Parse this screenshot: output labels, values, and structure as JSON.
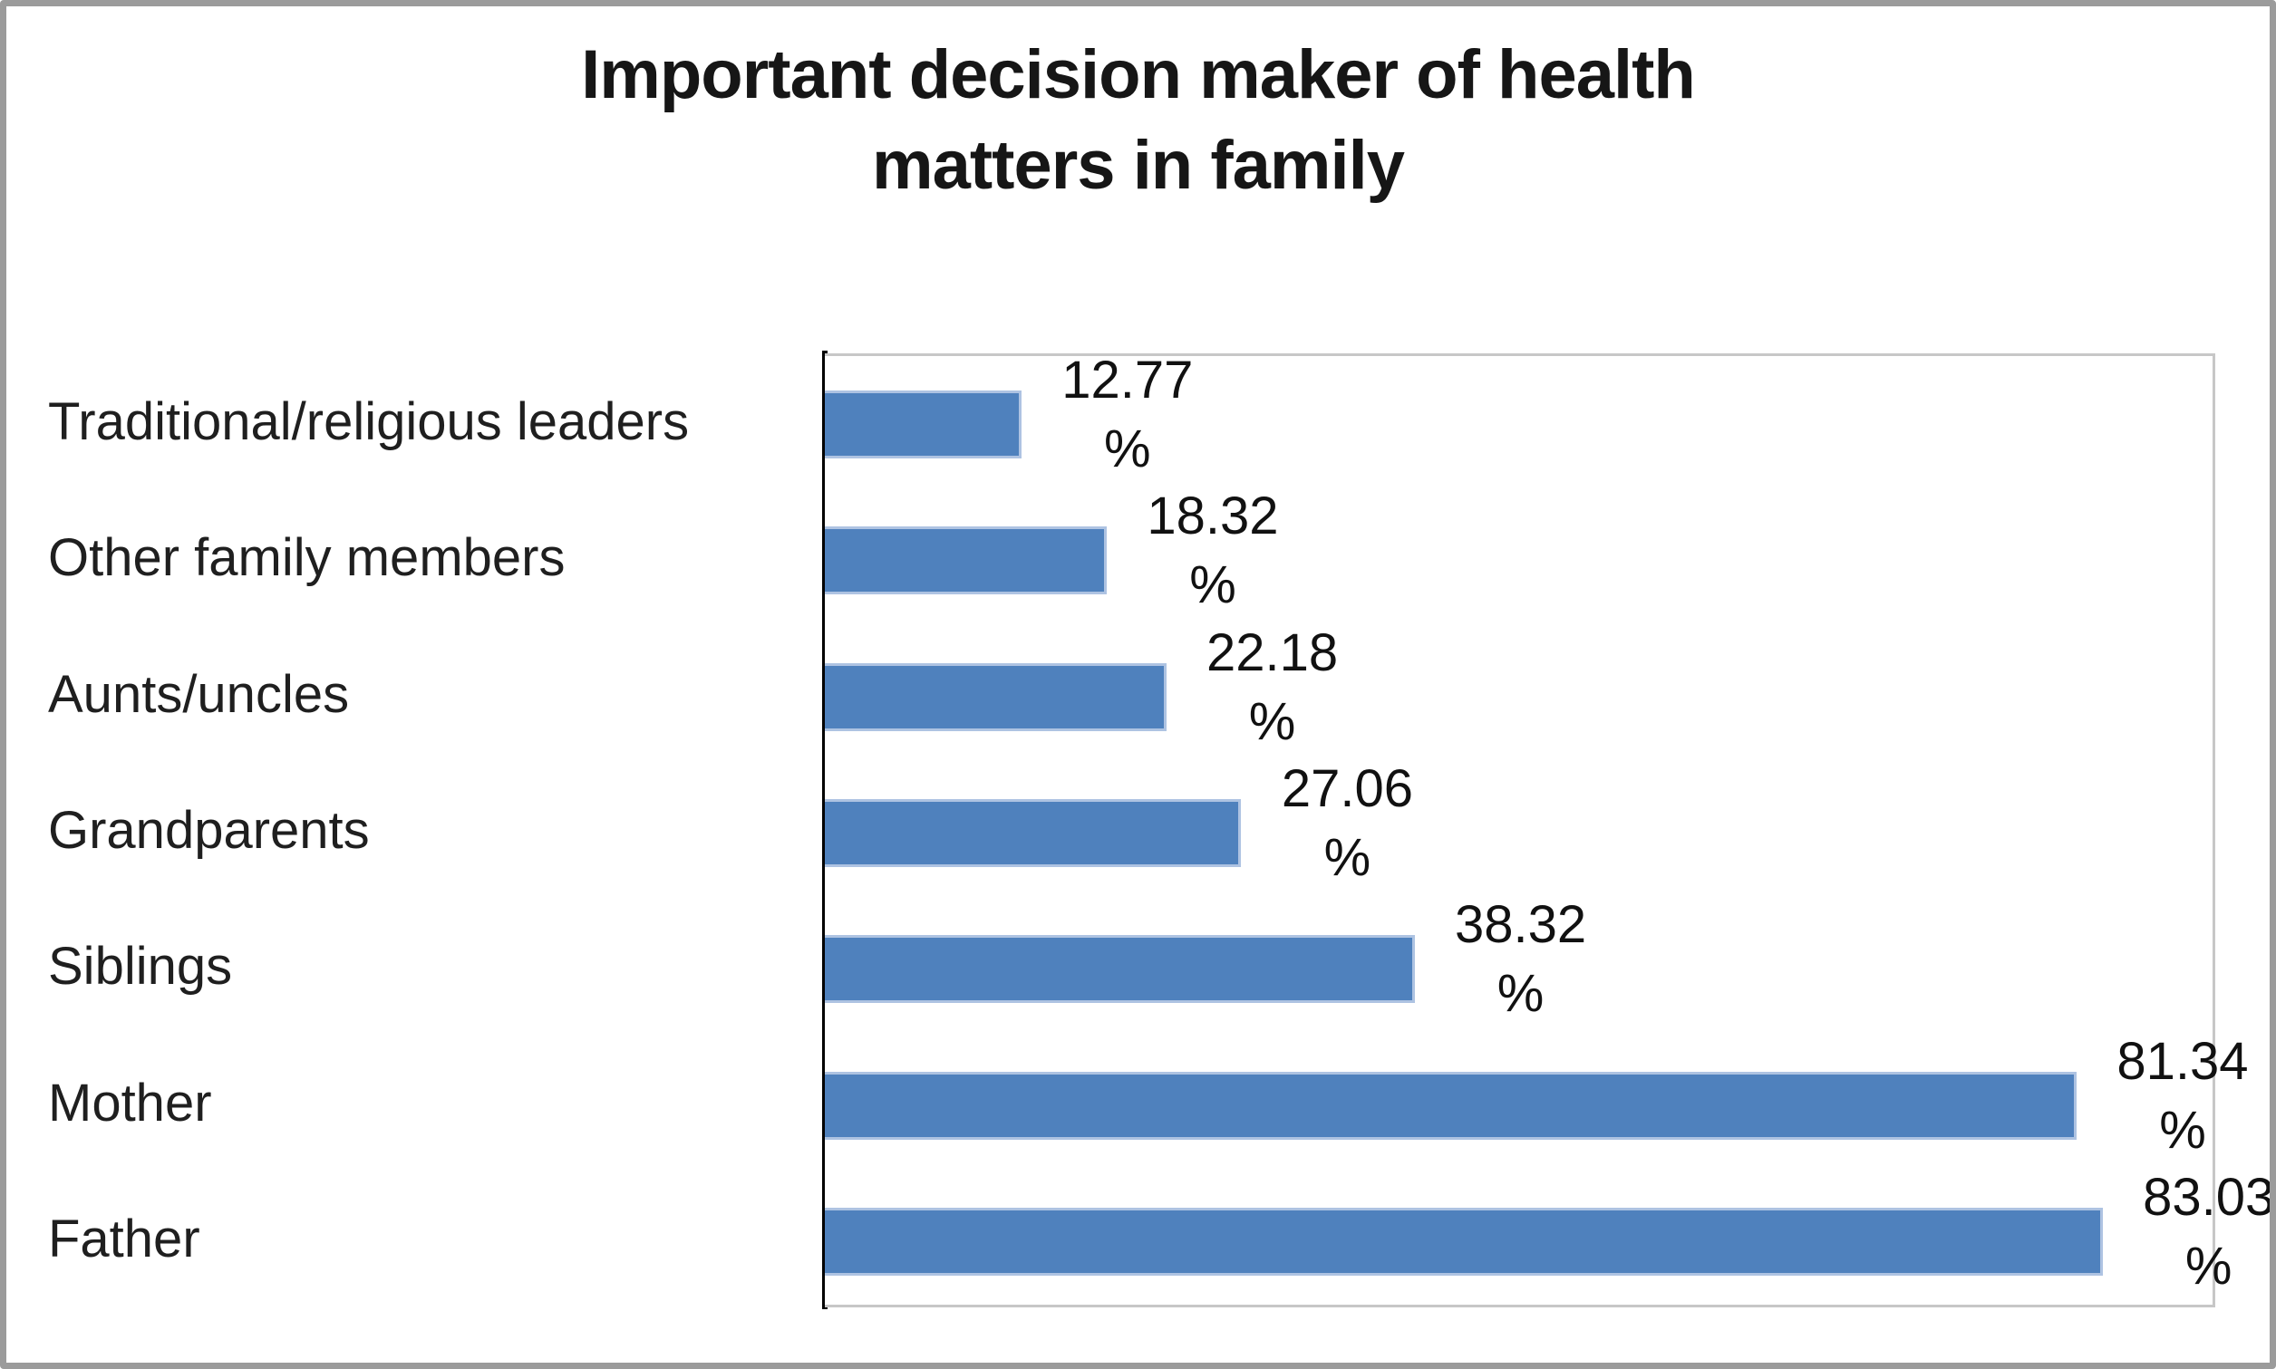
{
  "title": {
    "line1": "Important decision maker of health",
    "line2": "matters in family"
  },
  "chart_data": {
    "type": "bar",
    "orientation": "horizontal",
    "title": "Important decision maker of health matters in family",
    "categories": [
      "Traditional/religious leaders",
      "Other family members",
      "Aunts/uncles",
      "Grandparents",
      "Siblings",
      "Mother",
      "Father"
    ],
    "values": [
      12.77,
      18.32,
      22.18,
      27.06,
      38.32,
      81.34,
      83.03
    ],
    "value_suffix": "%",
    "xlabel": "",
    "ylabel": "",
    "xlim": [
      0,
      90
    ],
    "grid": false,
    "legend": false,
    "data_labels_shown": true,
    "colors": {
      "bar_fill": "#4f81bd",
      "bar_edge": "#aec3e2",
      "axis_line": "#000000",
      "plot_border": "#c7c7c7",
      "frame_border": "#9b9b9b",
      "title_text": "#161616",
      "label_text": "#1f1f1f"
    }
  }
}
